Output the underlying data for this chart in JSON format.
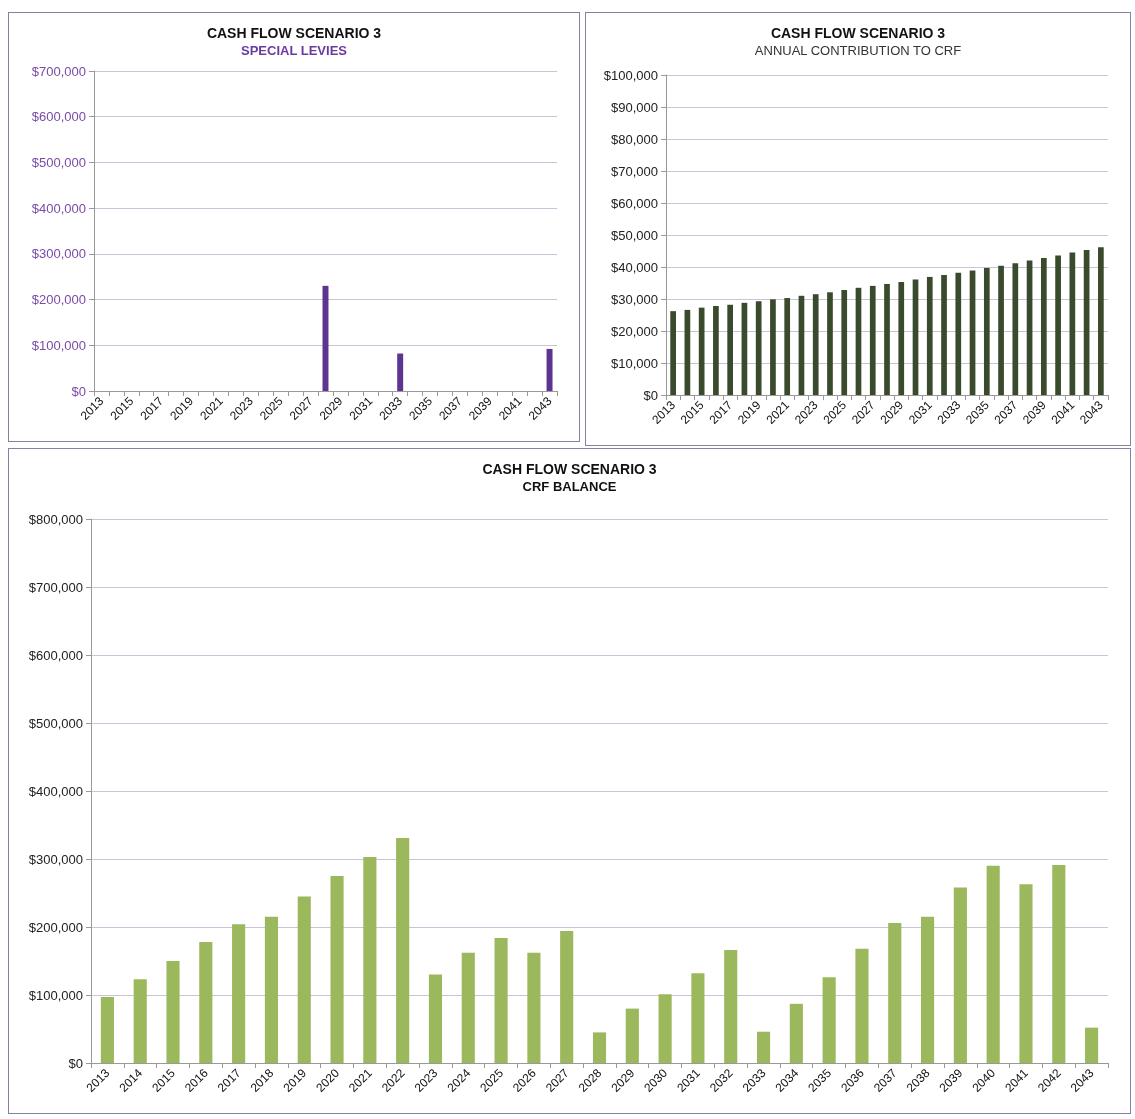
{
  "chart_data": [
    {
      "type": "bar",
      "title": "CASH FLOW SCENARIO 3",
      "subtitle": "SPECIAL LEVIES",
      "categories": [
        "2013",
        null,
        "2015",
        null,
        "2017",
        null,
        "2019",
        null,
        "2021",
        null,
        "2023",
        null,
        "2025",
        null,
        "2027",
        null,
        "2029",
        null,
        "2031",
        null,
        "2033",
        null,
        "2035",
        null,
        "2037",
        null,
        "2039",
        null,
        "2041",
        null,
        "2043"
      ],
      "values": [
        0,
        0,
        0,
        0,
        0,
        0,
        0,
        0,
        0,
        0,
        0,
        0,
        0,
        0,
        0,
        230000,
        0,
        0,
        0,
        0,
        82000,
        0,
        0,
        0,
        0,
        0,
        0,
        0,
        0,
        0,
        92000
      ],
      "color": "#5c3590",
      "ylim": [
        0,
        700000
      ],
      "yticks": [
        {
          "value": 0,
          "label": "$0"
        },
        {
          "value": 100000,
          "label": "$100,000"
        },
        {
          "value": 200000,
          "label": "$200,000"
        },
        {
          "value": 300000,
          "label": "$300,000"
        },
        {
          "value": 400000,
          "label": "$400,000"
        },
        {
          "value": 500000,
          "label": "$500,000"
        },
        {
          "value": 600000,
          "label": "$600,000"
        },
        {
          "value": 700000,
          "label": "$700,000"
        }
      ],
      "grid": "y"
    },
    {
      "type": "bar",
      "title": "CASH FLOW SCENARIO 3",
      "subtitle": "ANNUAL CONTRIBUTION TO CRF",
      "categories": [
        "2013",
        null,
        "2015",
        null,
        "2017",
        null,
        "2019",
        null,
        "2021",
        null,
        "2023",
        null,
        "2025",
        null,
        "2027",
        null,
        "2029",
        null,
        "2031",
        null,
        "2033",
        null,
        "2035",
        null,
        "2037",
        null,
        "2039",
        null,
        "2041",
        null,
        "2043"
      ],
      "values": [
        26200,
        26600,
        27300,
        27800,
        28200,
        28800,
        29300,
        29900,
        30300,
        31000,
        31500,
        32100,
        32800,
        33500,
        34100,
        34700,
        35300,
        36100,
        36900,
        37500,
        38200,
        38900,
        39700,
        40400,
        41200,
        42000,
        42800,
        43600,
        44500,
        45300,
        46200
      ],
      "color": "#3a4a2c",
      "ylim": [
        0,
        100000
      ],
      "yticks": [
        {
          "value": 0,
          "label": "$0"
        },
        {
          "value": 10000,
          "label": "$10,000"
        },
        {
          "value": 20000,
          "label": "$20,000"
        },
        {
          "value": 30000,
          "label": "$30,000"
        },
        {
          "value": 40000,
          "label": "$40,000"
        },
        {
          "value": 50000,
          "label": "$50,000"
        },
        {
          "value": 60000,
          "label": "$60,000"
        },
        {
          "value": 70000,
          "label": "$70,000"
        },
        {
          "value": 80000,
          "label": "$80,000"
        },
        {
          "value": 90000,
          "label": "$90,000"
        },
        {
          "value": 100000,
          "label": "$100,000"
        }
      ],
      "grid": "y"
    },
    {
      "type": "bar",
      "title": "CASH FLOW SCENARIO 3",
      "subtitle": "CRF BALANCE",
      "categories": [
        "2013",
        "2014",
        "2015",
        "2016",
        "2017",
        "2018",
        "2019",
        "2020",
        "2021",
        "2022",
        "2023",
        "2024",
        "2025",
        "2026",
        "2027",
        "2028",
        "2029",
        "2030",
        "2031",
        "2032",
        "2033",
        "2034",
        "2035",
        "2036",
        "2037",
        "2038",
        "2039",
        "2040",
        "2041",
        "2042",
        "2043"
      ],
      "values": [
        97000,
        123000,
        150000,
        178000,
        204000,
        215000,
        245000,
        275000,
        303000,
        331000,
        130000,
        162000,
        184000,
        162000,
        194000,
        45000,
        80000,
        101000,
        132000,
        166000,
        46000,
        87000,
        126000,
        168000,
        206000,
        215000,
        258000,
        290000,
        263000,
        291000,
        52000
      ],
      "color": "#9bb85c",
      "ylim": [
        0,
        800000
      ],
      "yticks": [
        {
          "value": 0,
          "label": "$0"
        },
        {
          "value": 100000,
          "label": "$100,000"
        },
        {
          "value": 200000,
          "label": "$200,000"
        },
        {
          "value": 300000,
          "label": "$300,000"
        },
        {
          "value": 400000,
          "label": "$400,000"
        },
        {
          "value": 500000,
          "label": "$500,000"
        },
        {
          "value": 600000,
          "label": "$600,000"
        },
        {
          "value": 700000,
          "label": "$700,000"
        },
        {
          "value": 800000,
          "label": "$800,000"
        }
      ],
      "grid": "y"
    }
  ]
}
